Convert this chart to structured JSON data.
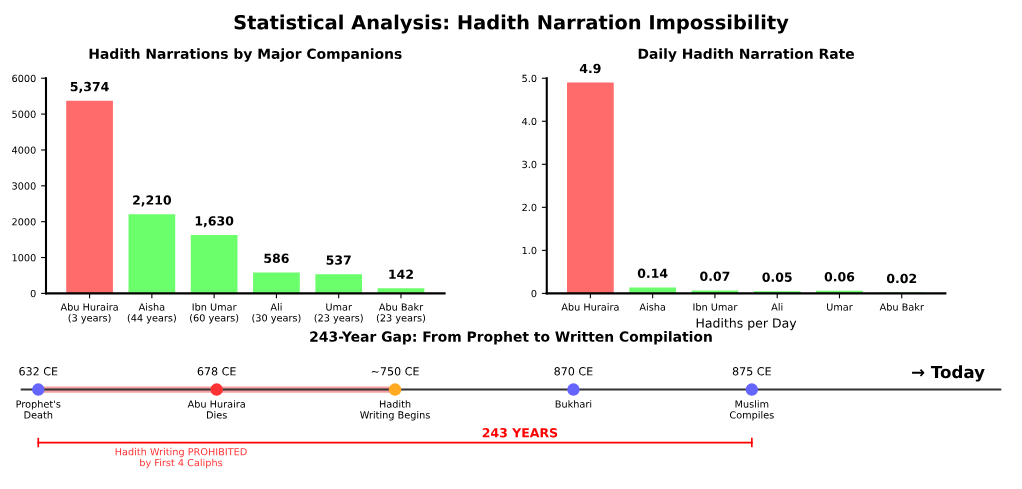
{
  "chart_data": [
    {
      "type": "bar",
      "title": "Hadith Narrations by Major Companions",
      "categories": [
        "Abu Huraira\n(3 years)",
        "Aisha\n(44 years)",
        "Ibn Umar\n(60 years)",
        "Ali\n(30 years)",
        "Umar\n(23 years)",
        "Abu Bakr\n(23 years)"
      ],
      "values": [
        5374,
        2210,
        1630,
        586,
        537,
        142
      ],
      "value_labels": [
        "5,374",
        "2,210",
        "1,630",
        "586",
        "537",
        "142"
      ],
      "colors": [
        "#ff6b6b",
        "#6bff6b",
        "#6bff6b",
        "#6bff6b",
        "#6bff6b",
        "#6bff6b"
      ],
      "ylim": [
        0,
        6000
      ],
      "yticks": [
        0,
        1000,
        2000,
        3000,
        4000,
        5000,
        6000
      ],
      "grid": false,
      "legend": false,
      "annotations": [
        "Statistical Analysis: Hadith Narration Impossibility"
      ]
    },
    {
      "type": "bar",
      "title": "Daily Hadith Narration Rate",
      "xlabel": "Hadiths per Day",
      "categories": [
        "Abu Huraira",
        "Aisha",
        "Ibn Umar",
        "Ali",
        "Umar",
        "Abu Bakr"
      ],
      "values": [
        4.9,
        0.14,
        0.07,
        0.05,
        0.06,
        0.02
      ],
      "data_labels": true,
      "colors": [
        "#ff6b6b",
        "#6bff6b",
        "#6bff6b",
        "#6bff6b",
        "#6bff6b",
        "#6bff6b"
      ],
      "ylim": [
        0,
        5.0
      ],
      "yticks": [
        0,
        {
          "value": 1,
          "label": "1.0"
        },
        {
          "value": 2,
          "label": "2.0"
        },
        {
          "value": 3,
          "label": "3.0"
        },
        {
          "value": 4,
          "label": "4.0"
        },
        {
          "value": 5,
          "label": "5.0"
        }
      ],
      "grid": false,
      "legend": false
    },
    {
      "type": "other",
      "title": "243-Year Gap: From Prophet to Written Compilation",
      "categories": [
        "632 CE",
        "678 CE",
        "~750 CE",
        "870 CE",
        "875 CE"
      ],
      "colors": [
        "#6666ff",
        "#ff3333",
        "#ffaa22",
        "#6666ff",
        "#6666ff"
      ],
      "annotations": [
        {
          "text": "Prophet's\nDeath",
          "x": "632 CE"
        },
        {
          "text": "Abu Huraira\nDies",
          "x": "678 CE"
        },
        {
          "text": "Hadith\nWriting Begins",
          "x": "~750 CE"
        },
        {
          "text": "Bukhari",
          "x": "870 CE"
        },
        {
          "text": "Muslim\nCompiles",
          "x": "875 CE"
        },
        "→ Today",
        "243 YEARS",
        "Hadith Writing PROHIBITED\nby First 4 Caliphs"
      ]
    }
  ]
}
